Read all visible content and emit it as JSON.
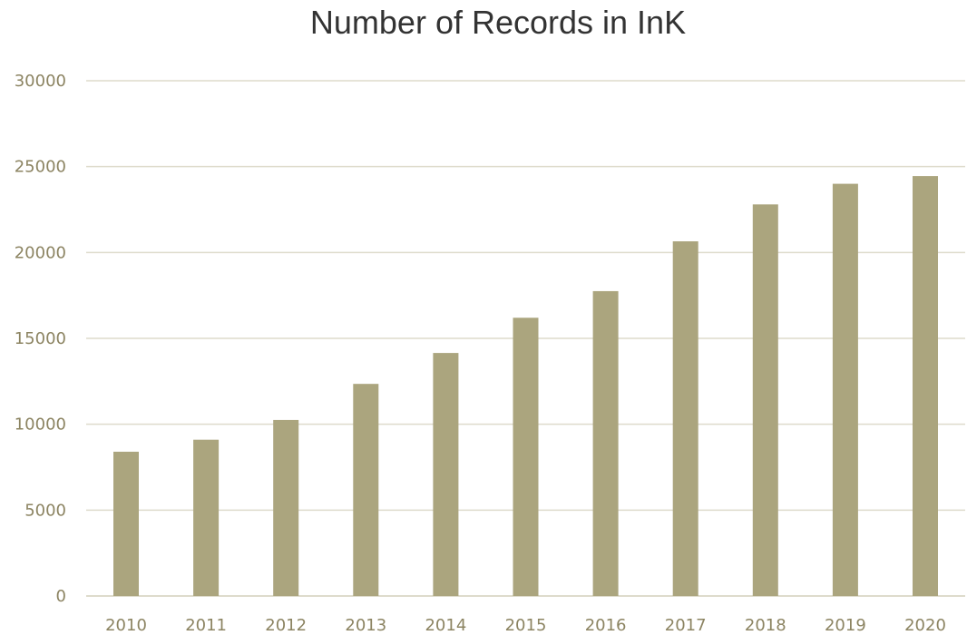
{
  "chart_data": {
    "type": "bar",
    "title": "Number of Records in InK",
    "xlabel": "",
    "ylabel": "",
    "categories": [
      "2010",
      "2011",
      "2012",
      "2013",
      "2014",
      "2015",
      "2016",
      "2017",
      "2018",
      "2019",
      "2020"
    ],
    "values": [
      8400,
      9100,
      10250,
      12350,
      14150,
      16200,
      17750,
      20650,
      22800,
      24000,
      24450
    ],
    "ylim": [
      0,
      30000
    ],
    "yticks": [
      0,
      5000,
      10000,
      15000,
      20000,
      25000,
      30000
    ],
    "grid": true,
    "legend": "none",
    "bar_color": "#aba57e"
  }
}
